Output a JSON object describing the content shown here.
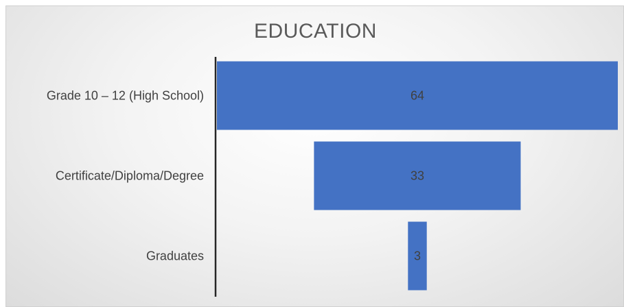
{
  "chart_data": {
    "type": "funnel",
    "title": "EDUCATION",
    "categories": [
      "Grade 10 – 12 (High School)",
      "Certificate/Diploma/Degree",
      "Graduates"
    ],
    "values": [
      64,
      33,
      3
    ],
    "bar_color": "#4472C4",
    "label_color": "#404040",
    "axis_color": "#262626",
    "grid": false,
    "legend": "none"
  }
}
